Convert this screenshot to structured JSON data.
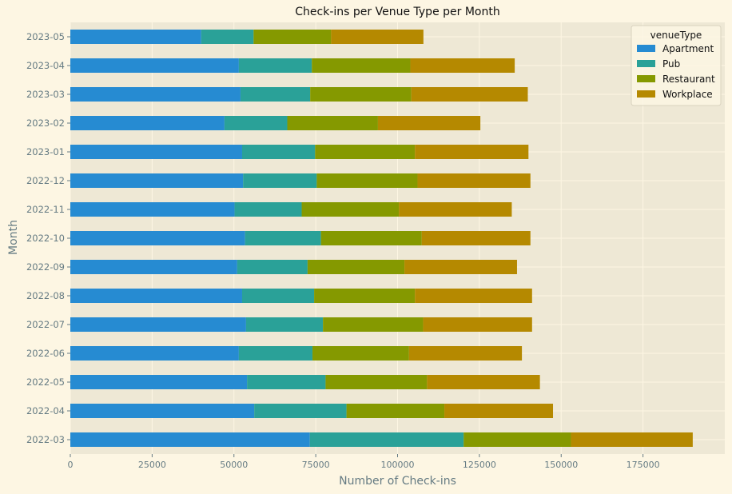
{
  "chart_data": {
    "type": "bar",
    "orientation": "horizontal",
    "stacked": true,
    "title": "Check-ins per Venue Type per Month",
    "xlabel": "Number of Check-ins",
    "ylabel": "Month",
    "xlim": [
      0,
      200000
    ],
    "xticks": [
      0,
      25000,
      50000,
      75000,
      100000,
      125000,
      150000,
      175000
    ],
    "xtick_labels": [
      "0",
      "25000",
      "50000",
      "75000",
      "100000",
      "125000",
      "150000",
      "175000"
    ],
    "grid": true,
    "legend": {
      "title": "venueType",
      "position": "top-right"
    },
    "categories": [
      "2022-03",
      "2022-04",
      "2022-05",
      "2022-06",
      "2022-07",
      "2022-08",
      "2022-09",
      "2022-10",
      "2022-11",
      "2022-12",
      "2023-01",
      "2023-02",
      "2023-03",
      "2023-04",
      "2023-05"
    ],
    "series": [
      {
        "name": "Apartment",
        "color": "#268bd2",
        "values": [
          73200,
          56200,
          54000,
          51500,
          53700,
          52500,
          51000,
          53400,
          50200,
          52800,
          52500,
          47100,
          52000,
          51500,
          40000
        ]
      },
      {
        "name": "Pub",
        "color": "#2aa198",
        "values": [
          47000,
          28200,
          24000,
          22500,
          23500,
          22000,
          21500,
          23200,
          20500,
          22500,
          22300,
          19200,
          21300,
          22300,
          16000
        ]
      },
      {
        "name": "Restaurant",
        "color": "#859900",
        "values": [
          32800,
          29900,
          31000,
          29500,
          30600,
          30800,
          29600,
          30800,
          29700,
          30800,
          30500,
          27700,
          30900,
          30100,
          23700
        ]
      },
      {
        "name": "Workplace",
        "color": "#b58900",
        "values": [
          37200,
          33200,
          34500,
          34500,
          33300,
          35800,
          34400,
          33200,
          34500,
          34500,
          34700,
          31300,
          35600,
          31900,
          28200
        ]
      }
    ]
  }
}
